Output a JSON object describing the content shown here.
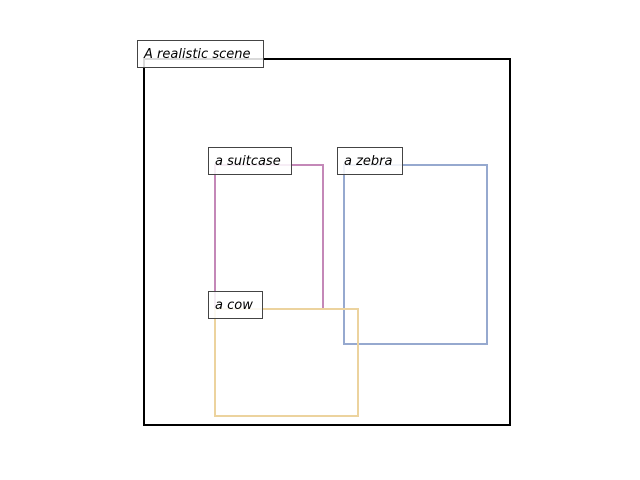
{
  "scene": {
    "caption": "A realistic scene",
    "frame_color": "#000000"
  },
  "boxes": [
    {
      "id": "suitcase",
      "label": "a suitcase",
      "color": "#c488b8"
    },
    {
      "id": "zebra",
      "label": "a zebra",
      "color": "#96a9cf"
    },
    {
      "id": "cow",
      "label": "a cow",
      "color": "#ecd39e"
    }
  ]
}
